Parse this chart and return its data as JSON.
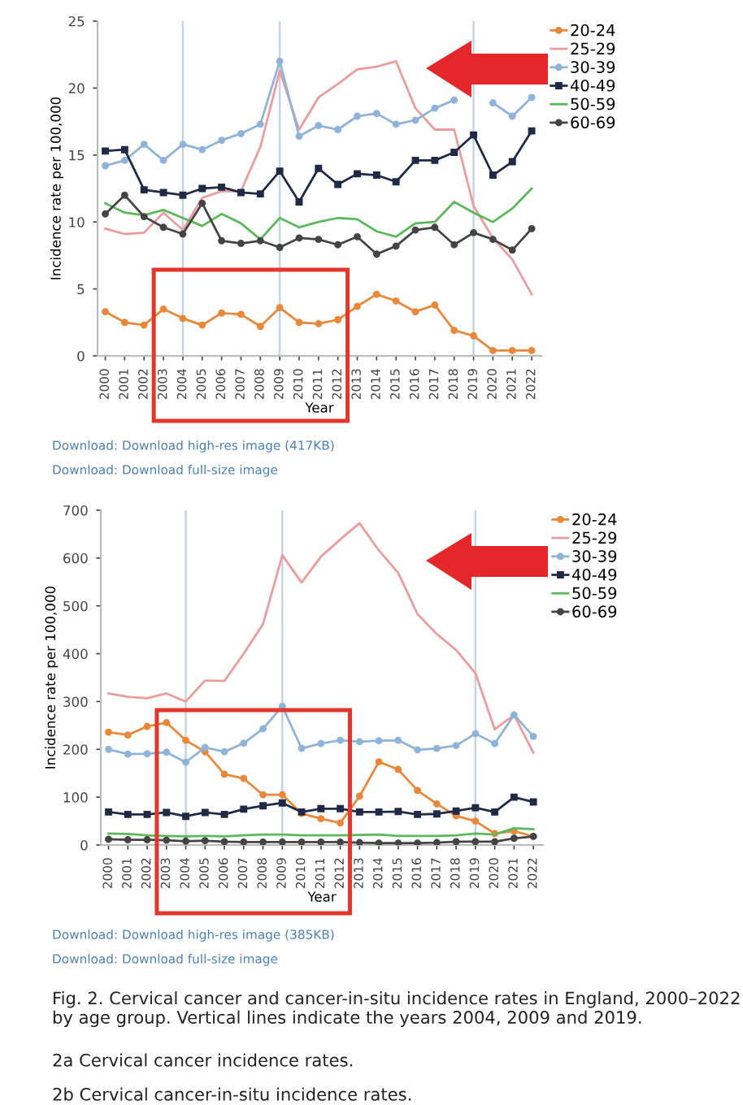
{
  "chart_data": [
    {
      "type": "line",
      "xlabel": "Year",
      "ylabel": "Incidence rate per 100,000",
      "x": [
        2000,
        2001,
        2002,
        2003,
        2004,
        2005,
        2006,
        2007,
        2008,
        2009,
        2010,
        2011,
        2012,
        2013,
        2014,
        2015,
        2016,
        2017,
        2018,
        2019,
        2020,
        2021,
        2022
      ],
      "xlim": [
        1999.6,
        2022.5
      ],
      "xticks": [
        2000,
        2001,
        2002,
        2003,
        2004,
        2005,
        2006,
        2007,
        2008,
        2009,
        2010,
        2011,
        2012,
        2013,
        2014,
        2015,
        2016,
        2017,
        2018,
        2019,
        2020,
        2021,
        2022
      ],
      "ylim": [
        0,
        25
      ],
      "yticks": [
        0,
        5,
        10,
        15,
        20,
        25
      ],
      "grid": false,
      "legend": "top right",
      "series": [
        {
          "name": "20-24",
          "color": "#e8883a",
          "marker": "circle",
          "values": [
            3.3,
            2.5,
            2.3,
            3.5,
            2.8,
            2.3,
            3.2,
            3.1,
            2.2,
            3.6,
            2.5,
            2.4,
            2.7,
            3.7,
            4.6,
            4.1,
            3.3,
            3.8,
            1.9,
            1.5,
            0.4,
            0.4,
            0.4
          ]
        },
        {
          "name": "25-29",
          "color": "#eb9c9c",
          "marker": "none",
          "values": [
            9.5,
            9.1,
            9.2,
            10.7,
            9.4,
            11.8,
            12.3,
            12.3,
            15.6,
            21.3,
            16.9,
            19.3,
            20.3,
            21.4,
            21.6,
            22.0,
            18.5,
            16.9,
            16.9,
            11.2,
            8.8,
            7.2,
            4.6
          ]
        },
        {
          "name": "30-39",
          "color": "#8fb3d9",
          "marker": "circle",
          "values": [
            14.2,
            14.6,
            15.8,
            14.6,
            15.8,
            15.4,
            16.1,
            16.6,
            17.3,
            22.0,
            16.4,
            17.2,
            16.9,
            17.9,
            18.1,
            17.3,
            17.6,
            18.5,
            19.1,
            null,
            18.9,
            17.9,
            19.3
          ]
        },
        {
          "name": "40-49",
          "color": "#1f2a44",
          "marker": "square",
          "values": [
            15.3,
            15.4,
            12.4,
            12.2,
            12.0,
            12.5,
            12.6,
            12.2,
            12.1,
            13.8,
            11.5,
            14.0,
            12.8,
            13.6,
            13.5,
            13.0,
            14.6,
            14.6,
            15.2,
            16.5,
            13.5,
            14.5,
            16.8
          ]
        },
        {
          "name": "50-59",
          "color": "#5cb85c",
          "marker": "none",
          "values": [
            11.4,
            10.7,
            10.5,
            10.9,
            10.3,
            9.7,
            10.6,
            9.9,
            8.7,
            10.3,
            9.6,
            10.0,
            10.3,
            10.2,
            9.3,
            8.9,
            9.9,
            10.0,
            11.5,
            10.7,
            10.0,
            11.0,
            12.5
          ]
        },
        {
          "name": "60-69",
          "color": "#444444",
          "marker": "circle",
          "values": [
            10.6,
            12.0,
            10.4,
            9.6,
            9.1,
            11.4,
            8.6,
            8.4,
            8.6,
            8.1,
            8.8,
            8.7,
            8.3,
            8.9,
            7.6,
            8.2,
            9.4,
            9.6,
            8.3,
            9.2,
            8.7,
            7.9,
            9.5
          ]
        }
      ],
      "ref_lines": [
        {
          "axis": "x",
          "value": 2004,
          "color": "#c5d3e3"
        },
        {
          "axis": "x",
          "value": 2009,
          "color": "#c5d3e3"
        },
        {
          "axis": "x",
          "value": 2019,
          "color": "#c5d3e3"
        }
      ],
      "annotations": [
        "Download: Download high-res image (417KB)",
        "Download: Download full-size image"
      ]
    },
    {
      "type": "line",
      "xlabel": "Year",
      "ylabel": "Incidence rate per 100,000",
      "x": [
        2000,
        2001,
        2002,
        2003,
        2004,
        2005,
        2006,
        2007,
        2008,
        2009,
        2010,
        2011,
        2012,
        2013,
        2014,
        2015,
        2016,
        2017,
        2018,
        2019,
        2020,
        2021,
        2022
      ],
      "xlim": [
        1999.6,
        2022.5
      ],
      "xticks": [
        2000,
        2001,
        2002,
        2003,
        2004,
        2005,
        2006,
        2007,
        2008,
        2009,
        2010,
        2011,
        2012,
        2013,
        2014,
        2015,
        2016,
        2017,
        2018,
        2019,
        2020,
        2021,
        2022
      ],
      "ylim": [
        0,
        700
      ],
      "yticks": [
        0,
        100,
        200,
        300,
        400,
        500,
        600,
        700
      ],
      "grid": false,
      "legend": "top right",
      "series": [
        {
          "name": "20-24",
          "color": "#e8883a",
          "marker": "circle",
          "values": [
            236,
            230,
            248,
            256,
            219,
            195,
            148,
            139,
            105,
            105,
            66,
            55,
            46,
            102,
            174,
            158,
            114,
            86,
            61,
            50,
            24,
            29,
            18
          ]
        },
        {
          "name": "25-29",
          "color": "#eb9c9c",
          "marker": "none",
          "values": [
            317,
            310,
            307,
            317,
            300,
            344,
            343,
            400,
            462,
            606,
            549,
            603,
            639,
            673,
            616,
            569,
            483,
            441,
            408,
            359,
            242,
            272,
            193
          ]
        },
        {
          "name": "30-39",
          "color": "#8fb3d9",
          "marker": "circle",
          "values": [
            200,
            190,
            191,
            194,
            173,
            204,
            195,
            213,
            243,
            290,
            202,
            212,
            219,
            216,
            218,
            219,
            199,
            202,
            208,
            233,
            212,
            272,
            227
          ]
        },
        {
          "name": "40-49",
          "color": "#1f2a44",
          "marker": "square",
          "values": [
            69,
            64,
            64,
            68,
            60,
            68,
            64,
            75,
            82,
            88,
            69,
            76,
            76,
            69,
            69,
            70,
            64,
            65,
            71,
            78,
            69,
            100,
            90
          ]
        },
        {
          "name": "50-59",
          "color": "#5cb85c",
          "marker": "none",
          "values": [
            24,
            23,
            20,
            19,
            18,
            19,
            18,
            20,
            22,
            22,
            20,
            20,
            20,
            21,
            22,
            19,
            19,
            19,
            20,
            24,
            22,
            35,
            33
          ]
        },
        {
          "name": "60-69",
          "color": "#444444",
          "marker": "circle",
          "values": [
            12,
            11,
            11,
            10,
            8,
            9,
            7,
            6,
            6,
            6,
            6,
            6,
            6,
            5,
            4,
            4,
            4,
            5,
            7,
            7,
            7,
            14,
            18
          ]
        }
      ],
      "ref_lines": [
        {
          "axis": "x",
          "value": 2004,
          "color": "#c5d3e3"
        },
        {
          "axis": "x",
          "value": 2009,
          "color": "#c5d3e3"
        },
        {
          "axis": "x",
          "value": 2019,
          "color": "#c5d3e3"
        }
      ],
      "annotations": [
        "Download: Download high-res image (385KB)",
        "Download: Download full-size image",
        "Fig. 2. Cervical cancer and cancer-in-situ incidence rates in England, 2000–2022 by age group. Vertical lines indicate the years 2004, 2009 and 2019.",
        "2a Cervical cancer incidence rates.",
        "2b Cervical cancer-in-situ incidence rates."
      ]
    }
  ]
}
